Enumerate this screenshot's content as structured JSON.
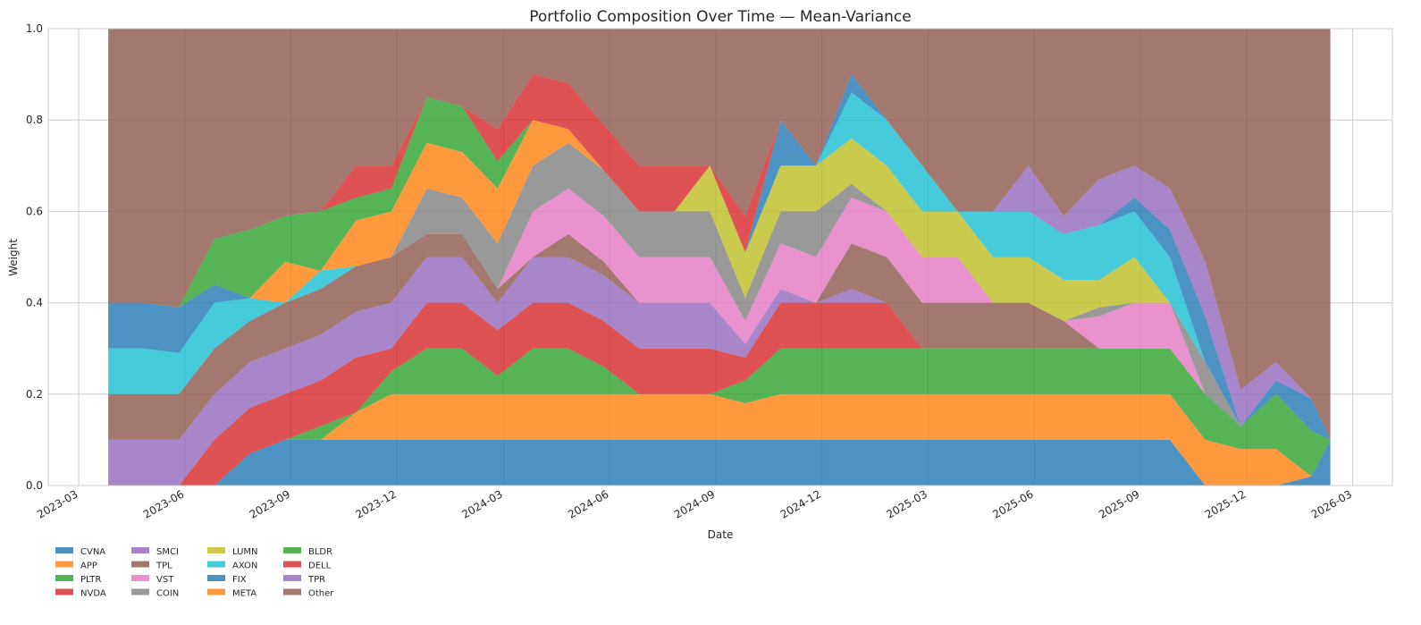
{
  "chart_data": {
    "type": "area",
    "stacked": true,
    "title": "Portfolio Composition Over Time — Mean-Variance",
    "xlabel": "Date",
    "ylabel": "Weight",
    "ylim": [
      0,
      1
    ],
    "yticks": [
      "0.0",
      "0.2",
      "0.4",
      "0.6",
      "0.8",
      "1.0"
    ],
    "yticks_values": [
      0,
      0.2,
      0.4,
      0.6,
      0.8,
      1.0
    ],
    "xticks": [
      "2023-03",
      "2023-06",
      "2023-09",
      "2023-12",
      "2024-03",
      "2024-06",
      "2024-09",
      "2024-12",
      "2025-03",
      "2025-06",
      "2025-09",
      "2025-12",
      "2026-03"
    ],
    "grid": true,
    "legend_placement": "below-left",
    "x": [
      "2023-03-26",
      "2023-04-26",
      "2023-05-26",
      "2023-06-26",
      "2023-07-26",
      "2023-08-26",
      "2023-09-26",
      "2023-10-26",
      "2023-11-26",
      "2023-12-26",
      "2024-01-26",
      "2024-02-26",
      "2024-03-26",
      "2024-04-26",
      "2024-05-26",
      "2024-06-26",
      "2024-07-26",
      "2024-08-26",
      "2024-09-26",
      "2024-10-26",
      "2024-11-26",
      "2024-12-26",
      "2025-01-26",
      "2025-02-26",
      "2025-03-26",
      "2025-04-26",
      "2025-05-26",
      "2025-06-26",
      "2025-07-26",
      "2025-08-26",
      "2025-09-26",
      "2025-10-26",
      "2025-11-26",
      "2025-12-26",
      "2026-01-26",
      "2026-02-12"
    ],
    "series": [
      {
        "name": "CVNA",
        "color": "#1f77b4",
        "values": [
          0,
          0,
          0,
          0,
          0.07,
          0.1,
          0.1,
          0.1,
          0.1,
          0.1,
          0.1,
          0.1,
          0.1,
          0.1,
          0.1,
          0.1,
          0.1,
          0.1,
          0.1,
          0.1,
          0.1,
          0.1,
          0.1,
          0.1,
          0.1,
          0.1,
          0.1,
          0.1,
          0.1,
          0.1,
          0.1,
          0,
          0,
          0,
          0.02,
          0.1
        ]
      },
      {
        "name": "APP",
        "color": "#ff7f0e",
        "values": [
          0,
          0,
          0,
          0,
          0,
          0,
          0,
          0.06,
          0.1,
          0.1,
          0.1,
          0.1,
          0.1,
          0.1,
          0.1,
          0.1,
          0.1,
          0.1,
          0.08,
          0.1,
          0.1,
          0.1,
          0.1,
          0.1,
          0.1,
          0.1,
          0.1,
          0.1,
          0.1,
          0.1,
          0.1,
          0.1,
          0.08,
          0.08,
          0,
          0
        ]
      },
      {
        "name": "PLTR",
        "color": "#2ca02c",
        "values": [
          0,
          0,
          0,
          0,
          0,
          0,
          0.03,
          0,
          0.05,
          0.1,
          0.1,
          0.04,
          0.1,
          0.1,
          0.06,
          0,
          0,
          0,
          0.05,
          0.1,
          0.1,
          0.1,
          0.1,
          0.1,
          0.1,
          0.1,
          0.1,
          0.1,
          0.1,
          0.1,
          0.1,
          0.1,
          0.05,
          0.12,
          0.1,
          0
        ]
      },
      {
        "name": "NVDA",
        "color": "#d62728",
        "values": [
          0,
          0,
          0,
          0.1,
          0.1,
          0.1,
          0.1,
          0.12,
          0.05,
          0.1,
          0.1,
          0.1,
          0.1,
          0.1,
          0.1,
          0.1,
          0.1,
          0.1,
          0.05,
          0.1,
          0.1,
          0.1,
          0.1,
          0,
          0,
          0,
          0,
          0,
          0,
          0,
          0,
          0,
          0,
          0,
          0,
          0
        ]
      },
      {
        "name": "SMCI",
        "color": "#9467bd",
        "values": [
          0.1,
          0.1,
          0.1,
          0.1,
          0.1,
          0.1,
          0.1,
          0.1,
          0.1,
          0.1,
          0.1,
          0.06,
          0.1,
          0.1,
          0.1,
          0.1,
          0.1,
          0.1,
          0.03,
          0.03,
          0,
          0.03,
          0,
          0,
          0,
          0,
          0,
          0,
          0,
          0,
          0,
          0,
          0,
          0,
          0,
          0
        ]
      },
      {
        "name": "TPL",
        "color": "#8c564b",
        "values": [
          0.1,
          0.1,
          0.1,
          0.1,
          0.09,
          0.1,
          0.1,
          0.1,
          0.1,
          0.05,
          0.05,
          0.03,
          0,
          0.05,
          0.03,
          0,
          0,
          0,
          0,
          0,
          0,
          0.1,
          0.1,
          0.1,
          0.1,
          0.1,
          0.1,
          0.06,
          0,
          0,
          0,
          0,
          0,
          0,
          0,
          0
        ]
      },
      {
        "name": "VST",
        "color": "#e377c2",
        "values": [
          0,
          0,
          0,
          0,
          0,
          0,
          0,
          0,
          0,
          0,
          0,
          0,
          0.1,
          0.1,
          0.1,
          0.1,
          0.1,
          0.1,
          0.05,
          0.1,
          0.1,
          0.1,
          0.1,
          0.1,
          0.1,
          0,
          0,
          0,
          0.07,
          0.1,
          0.1,
          0,
          0,
          0,
          0,
          0
        ]
      },
      {
        "name": "COIN",
        "color": "#7f7f7f",
        "values": [
          0,
          0,
          0,
          0,
          0,
          0,
          0,
          0,
          0,
          0.1,
          0.08,
          0.1,
          0.1,
          0.1,
          0.1,
          0.1,
          0.1,
          0.1,
          0.05,
          0.07,
          0.1,
          0.03,
          0,
          0,
          0,
          0,
          0,
          0,
          0.02,
          0,
          0,
          0.07,
          0,
          0,
          0,
          0
        ]
      },
      {
        "name": "LUMN",
        "color": "#bcbd22",
        "values": [
          0,
          0,
          0,
          0,
          0,
          0,
          0,
          0,
          0,
          0,
          0,
          0,
          0,
          0,
          0,
          0,
          0,
          0.1,
          0.1,
          0.1,
          0.1,
          0.1,
          0.1,
          0.1,
          0.1,
          0.1,
          0.1,
          0.09,
          0.06,
          0.1,
          0,
          0,
          0,
          0,
          0,
          0
        ]
      },
      {
        "name": "AXON",
        "color": "#17becf",
        "values": [
          0.1,
          0.1,
          0.09,
          0.1,
          0.05,
          0,
          0.04,
          0,
          0,
          0,
          0,
          0,
          0,
          0,
          0,
          0,
          0,
          0,
          0,
          0,
          0,
          0.1,
          0.1,
          0.1,
          0,
          0.1,
          0.1,
          0.1,
          0.12,
          0.1,
          0.1,
          0,
          0,
          0,
          0,
          0
        ]
      },
      {
        "name": "FIX",
        "color": "#1f77b4",
        "values": [
          0.1,
          0.1,
          0.1,
          0.04,
          0,
          0,
          0,
          0,
          0,
          0,
          0,
          0,
          0,
          0,
          0,
          0,
          0,
          0,
          0,
          0.1,
          0,
          0.04,
          0,
          0,
          0,
          0,
          0,
          0,
          0,
          0.03,
          0.06,
          0.1,
          0,
          0.03,
          0.07,
          0
        ]
      },
      {
        "name": "META",
        "color": "#ff7f0e",
        "values": [
          0,
          0,
          0,
          0,
          0,
          0.09,
          0,
          0.1,
          0.1,
          0.1,
          0.1,
          0.12,
          0.1,
          0.03,
          0,
          0,
          0,
          0,
          0,
          0,
          0,
          0,
          0,
          0,
          0,
          0,
          0,
          0,
          0,
          0,
          0,
          0,
          0,
          0,
          0,
          0
        ]
      },
      {
        "name": "BLDR",
        "color": "#2ca02c",
        "values": [
          0,
          0,
          0,
          0.1,
          0.15,
          0.1,
          0.13,
          0.05,
          0.05,
          0.1,
          0.1,
          0.06,
          0,
          0,
          0,
          0,
          0,
          0,
          0,
          0,
          0,
          0,
          0,
          0,
          0,
          0,
          0,
          0,
          0,
          0,
          0,
          0,
          0,
          0,
          0,
          0
        ]
      },
      {
        "name": "DELL",
        "color": "#d62728",
        "values": [
          0,
          0,
          0,
          0,
          0,
          0,
          0,
          0.07,
          0.05,
          0,
          0,
          0.07,
          0.1,
          0.1,
          0.1,
          0.1,
          0.1,
          0,
          0.08,
          0,
          0,
          0,
          0,
          0,
          0,
          0,
          0,
          0,
          0,
          0,
          0,
          0,
          0,
          0,
          0,
          0
        ]
      },
      {
        "name": "TPR",
        "color": "#9467bd",
        "values": [
          0,
          0,
          0,
          0,
          0,
          0,
          0,
          0,
          0,
          0,
          0,
          0,
          0,
          0,
          0,
          0,
          0,
          0,
          0,
          0,
          0,
          0,
          0,
          0,
          0,
          0,
          0.1,
          0.04,
          0.1,
          0.07,
          0.09,
          0.12,
          0.08,
          0.04,
          0,
          0
        ]
      },
      {
        "name": "Other",
        "color": "#8c564b",
        "values": "remainder"
      }
    ]
  }
}
